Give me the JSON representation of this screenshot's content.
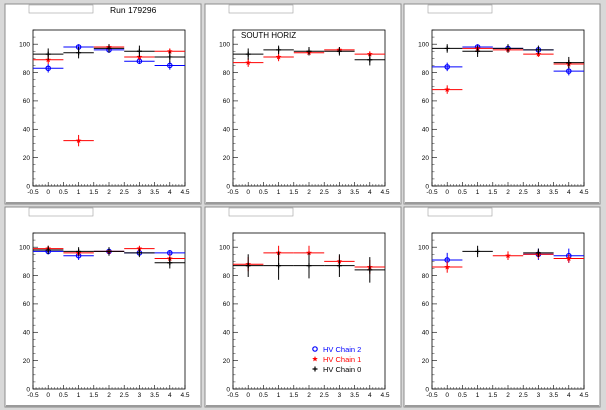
{
  "canvas": {
    "run_label": "Run 179296",
    "background": "#d8d8d8",
    "panel_color": "#ffffff",
    "frame_color": "#8c8c8c"
  },
  "series_colors": {
    "chain2": "#0000ff",
    "chain1": "#ff0000",
    "chain0": "#000000"
  },
  "legend": {
    "items": [
      {
        "label": "HV Chain 2",
        "color": "#0000ff",
        "marker": "circle"
      },
      {
        "label": "HV Chain 1",
        "color": "#ff0000",
        "marker": "star"
      },
      {
        "label": "HV Chain 0",
        "color": "#000000",
        "marker": "plus"
      }
    ]
  },
  "chart_data": [
    {
      "type": "scatter",
      "title": "",
      "annotation": "",
      "xlim": [
        -0.5,
        4.5
      ],
      "ylim": [
        0,
        110
      ],
      "xticks": [
        "-0.5",
        "0",
        "0.5",
        "1",
        "1.5",
        "2",
        "2.5",
        "3",
        "3.5",
        "4",
        "4.5"
      ],
      "yticks": [
        "0",
        "20",
        "40",
        "60",
        "80",
        "100"
      ],
      "series": [
        {
          "color": "#0000ff",
          "marker": "circle",
          "x": [
            0,
            1,
            2,
            3,
            4
          ],
          "y": [
            83,
            98,
            96,
            88,
            85
          ],
          "xerr": 0.5,
          "yerr": [
            3,
            2,
            2,
            2,
            3
          ]
        },
        {
          "color": "#ff0000",
          "marker": "star",
          "x": [
            0,
            1,
            2,
            3,
            4
          ],
          "y": [
            89,
            32,
            98,
            91,
            95
          ],
          "xerr": 0.5,
          "yerr": [
            3,
            4,
            2,
            2,
            2
          ]
        },
        {
          "color": "#000000",
          "marker": "plus",
          "x": [
            0,
            1,
            2,
            3,
            4
          ],
          "y": [
            93,
            94,
            97,
            95,
            91
          ],
          "xerr": 0.5,
          "yerr": [
            4,
            4,
            3,
            4,
            4
          ]
        }
      ]
    },
    {
      "type": "scatter",
      "title": "",
      "annotation": "SOUTH HORIZ",
      "xlim": [
        -0.5,
        4.5
      ],
      "ylim": [
        0,
        110
      ],
      "xticks": [
        "-0.5",
        "0",
        "0.5",
        "1",
        "1.5",
        "2",
        "2.5",
        "3",
        "3.5",
        "4",
        "4.5"
      ],
      "yticks": [
        "0",
        "20",
        "40",
        "60",
        "80",
        "100"
      ],
      "series": [
        {
          "color": "#ff0000",
          "marker": "star",
          "x": [
            0,
            1,
            2,
            3,
            4
          ],
          "y": [
            87,
            91,
            94,
            96,
            93
          ],
          "xerr": 0.5,
          "yerr": [
            3,
            3,
            2,
            2,
            2
          ]
        },
        {
          "color": "#000000",
          "marker": "plus",
          "x": [
            0,
            1,
            2,
            3,
            4
          ],
          "y": [
            93,
            96,
            95,
            95,
            89
          ],
          "xerr": 0.5,
          "yerr": [
            4,
            3,
            3,
            3,
            4
          ]
        }
      ]
    },
    {
      "type": "scatter",
      "title": "",
      "annotation": "",
      "xlim": [
        -0.5,
        4.5
      ],
      "ylim": [
        0,
        110
      ],
      "xticks": [
        "-0.5",
        "0",
        "0.5",
        "1",
        "1.5",
        "2",
        "2.5",
        "3",
        "3.5",
        "4",
        "4.5"
      ],
      "yticks": [
        "0",
        "20",
        "40",
        "60",
        "80",
        "100"
      ],
      "series": [
        {
          "color": "#0000ff",
          "marker": "circle",
          "x": [
            0,
            1,
            2,
            3,
            4
          ],
          "y": [
            84,
            98,
            97,
            96,
            81
          ],
          "xerr": 0.5,
          "yerr": [
            3,
            2,
            2,
            2,
            3
          ]
        },
        {
          "color": "#ff0000",
          "marker": "star",
          "x": [
            0,
            1,
            2,
            3,
            4
          ],
          "y": [
            68,
            97,
            96,
            93,
            86
          ],
          "xerr": 0.5,
          "yerr": [
            3,
            2,
            2,
            2,
            3
          ]
        },
        {
          "color": "#000000",
          "marker": "plus",
          "x": [
            0,
            1,
            2,
            3,
            4
          ],
          "y": [
            97,
            95,
            97,
            96,
            87
          ],
          "xerr": 0.5,
          "yerr": [
            3,
            4,
            3,
            3,
            4
          ]
        }
      ]
    },
    {
      "type": "scatter",
      "title": "",
      "annotation": "",
      "xlim": [
        -0.5,
        4.5
      ],
      "ylim": [
        0,
        110
      ],
      "xticks": [
        "-0.5",
        "0",
        "0.5",
        "1",
        "1.5",
        "2",
        "2.5",
        "3",
        "3.5",
        "4",
        "4.5"
      ],
      "yticks": [
        "0",
        "20",
        "40",
        "60",
        "80",
        "100"
      ],
      "series": [
        {
          "color": "#0000ff",
          "marker": "circle",
          "x": [
            0,
            1,
            2,
            3,
            4
          ],
          "y": [
            97,
            94,
            97,
            96,
            96
          ],
          "xerr": 0.5,
          "yerr": [
            2,
            3,
            2,
            2,
            2
          ]
        },
        {
          "color": "#ff0000",
          "marker": "star",
          "x": [
            0,
            1,
            2,
            3,
            4
          ],
          "y": [
            99,
            96,
            97,
            99,
            92
          ],
          "xerr": 0.5,
          "yerr": [
            2,
            2,
            2,
            2,
            3
          ]
        },
        {
          "color": "#000000",
          "marker": "plus",
          "x": [
            0,
            1,
            2,
            3,
            4
          ],
          "y": [
            98,
            97,
            97,
            96,
            89
          ],
          "xerr": 0.5,
          "yerr": [
            3,
            3,
            3,
            3,
            4
          ]
        }
      ]
    },
    {
      "type": "scatter",
      "title": "",
      "annotation": "",
      "xlim": [
        -0.5,
        4.5
      ],
      "ylim": [
        0,
        110
      ],
      "xticks": [
        "-0.5",
        "0",
        "0.5",
        "1",
        "1.5",
        "2",
        "2.5",
        "3",
        "3.5",
        "4",
        "4.5"
      ],
      "yticks": [
        "0",
        "20",
        "40",
        "60",
        "80",
        "100"
      ],
      "series": [
        {
          "color": "#ff0000",
          "marker": "star",
          "x": [
            0,
            1,
            2,
            3,
            4
          ],
          "y": [
            88,
            96,
            96,
            90,
            86
          ],
          "xerr": 0.5,
          "yerr": [
            5,
            5,
            5,
            4,
            5
          ]
        },
        {
          "color": "#000000",
          "marker": "plus",
          "x": [
            0,
            1,
            2,
            3,
            4
          ],
          "y": [
            87,
            87,
            87,
            87,
            84
          ],
          "xerr": 0.5,
          "yerr": [
            8,
            10,
            9,
            8,
            9
          ]
        }
      ],
      "legend": true
    },
    {
      "type": "scatter",
      "title": "",
      "annotation": "",
      "xlim": [
        -0.5,
        4.5
      ],
      "ylim": [
        0,
        110
      ],
      "xticks": [
        "-0.5",
        "0",
        "0.5",
        "1",
        "1.5",
        "2",
        "2.5",
        "3",
        "3.5",
        "4",
        "4.5"
      ],
      "yticks": [
        "0",
        "20",
        "40",
        "60",
        "80",
        "100"
      ],
      "series": [
        {
          "color": "#0000ff",
          "marker": "circle",
          "x": [
            0,
            3,
            4
          ],
          "y": [
            91,
            95,
            94
          ],
          "xerr": 0.5,
          "yerr": [
            5,
            4,
            5
          ]
        },
        {
          "color": "#ff0000",
          "marker": "star",
          "x": [
            0,
            2,
            3,
            4
          ],
          "y": [
            86,
            94,
            95,
            92
          ],
          "xerr": 0.5,
          "yerr": [
            4,
            3,
            3,
            3
          ]
        },
        {
          "color": "#000000",
          "marker": "plus",
          "x": [
            1,
            3
          ],
          "y": [
            97,
            96
          ],
          "xerr": 0.5,
          "yerr": [
            4,
            3
          ]
        }
      ]
    }
  ]
}
